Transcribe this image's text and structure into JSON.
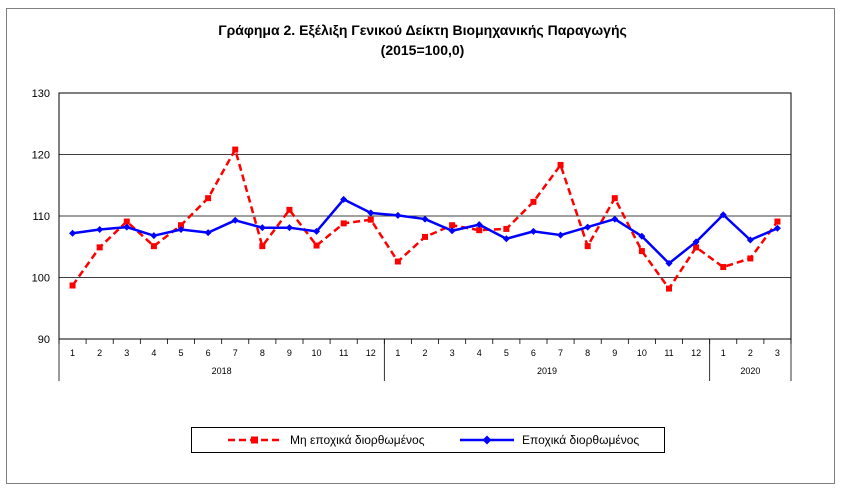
{
  "chart_data": {
    "type": "line",
    "title": "Γράφημα 2. Εξέλιξη Γενικού Δείκτη Βιομηχανικής Παραγωγής",
    "subtitle": "(2015=100,0)",
    "categories": [
      "1",
      "2",
      "3",
      "4",
      "5",
      "6",
      "7",
      "8",
      "9",
      "10",
      "11",
      "12",
      "1",
      "2",
      "3",
      "4",
      "5",
      "6",
      "7",
      "8",
      "9",
      "10",
      "11",
      "12",
      "1",
      "2",
      "3"
    ],
    "years": [
      {
        "label": "2018",
        "count": 12
      },
      {
        "label": "2019",
        "count": 12
      },
      {
        "label": "2020",
        "count": 3
      }
    ],
    "ylim": [
      90,
      130
    ],
    "yticks": [
      90,
      100,
      110,
      120,
      130
    ],
    "grid": true,
    "legend_position": "bottom",
    "series": [
      {
        "name": "Μη εποχικά διορθωμένος",
        "color": "#ff0000",
        "style": "dashed",
        "marker": "square",
        "values": [
          98.7,
          104.9,
          109.1,
          105.1,
          108.5,
          112.9,
          120.8,
          105.1,
          111.0,
          105.2,
          108.8,
          109.4,
          102.6,
          106.6,
          108.5,
          107.7,
          107.9,
          112.3,
          118.3,
          105.1,
          112.9,
          104.3,
          98.2,
          104.9,
          101.7,
          103.1,
          109.1
        ]
      },
      {
        "name": "Εποχικά διορθωμένος",
        "color": "#0000ff",
        "style": "solid",
        "marker": "diamond",
        "values": [
          107.2,
          107.8,
          108.2,
          106.8,
          107.8,
          107.3,
          109.3,
          108.1,
          108.1,
          107.5,
          112.7,
          110.5,
          110.1,
          109.5,
          107.6,
          108.6,
          106.3,
          107.5,
          106.9,
          108.2,
          109.5,
          106.7,
          102.3,
          105.8,
          110.2,
          106.1,
          108.0
        ]
      }
    ]
  }
}
